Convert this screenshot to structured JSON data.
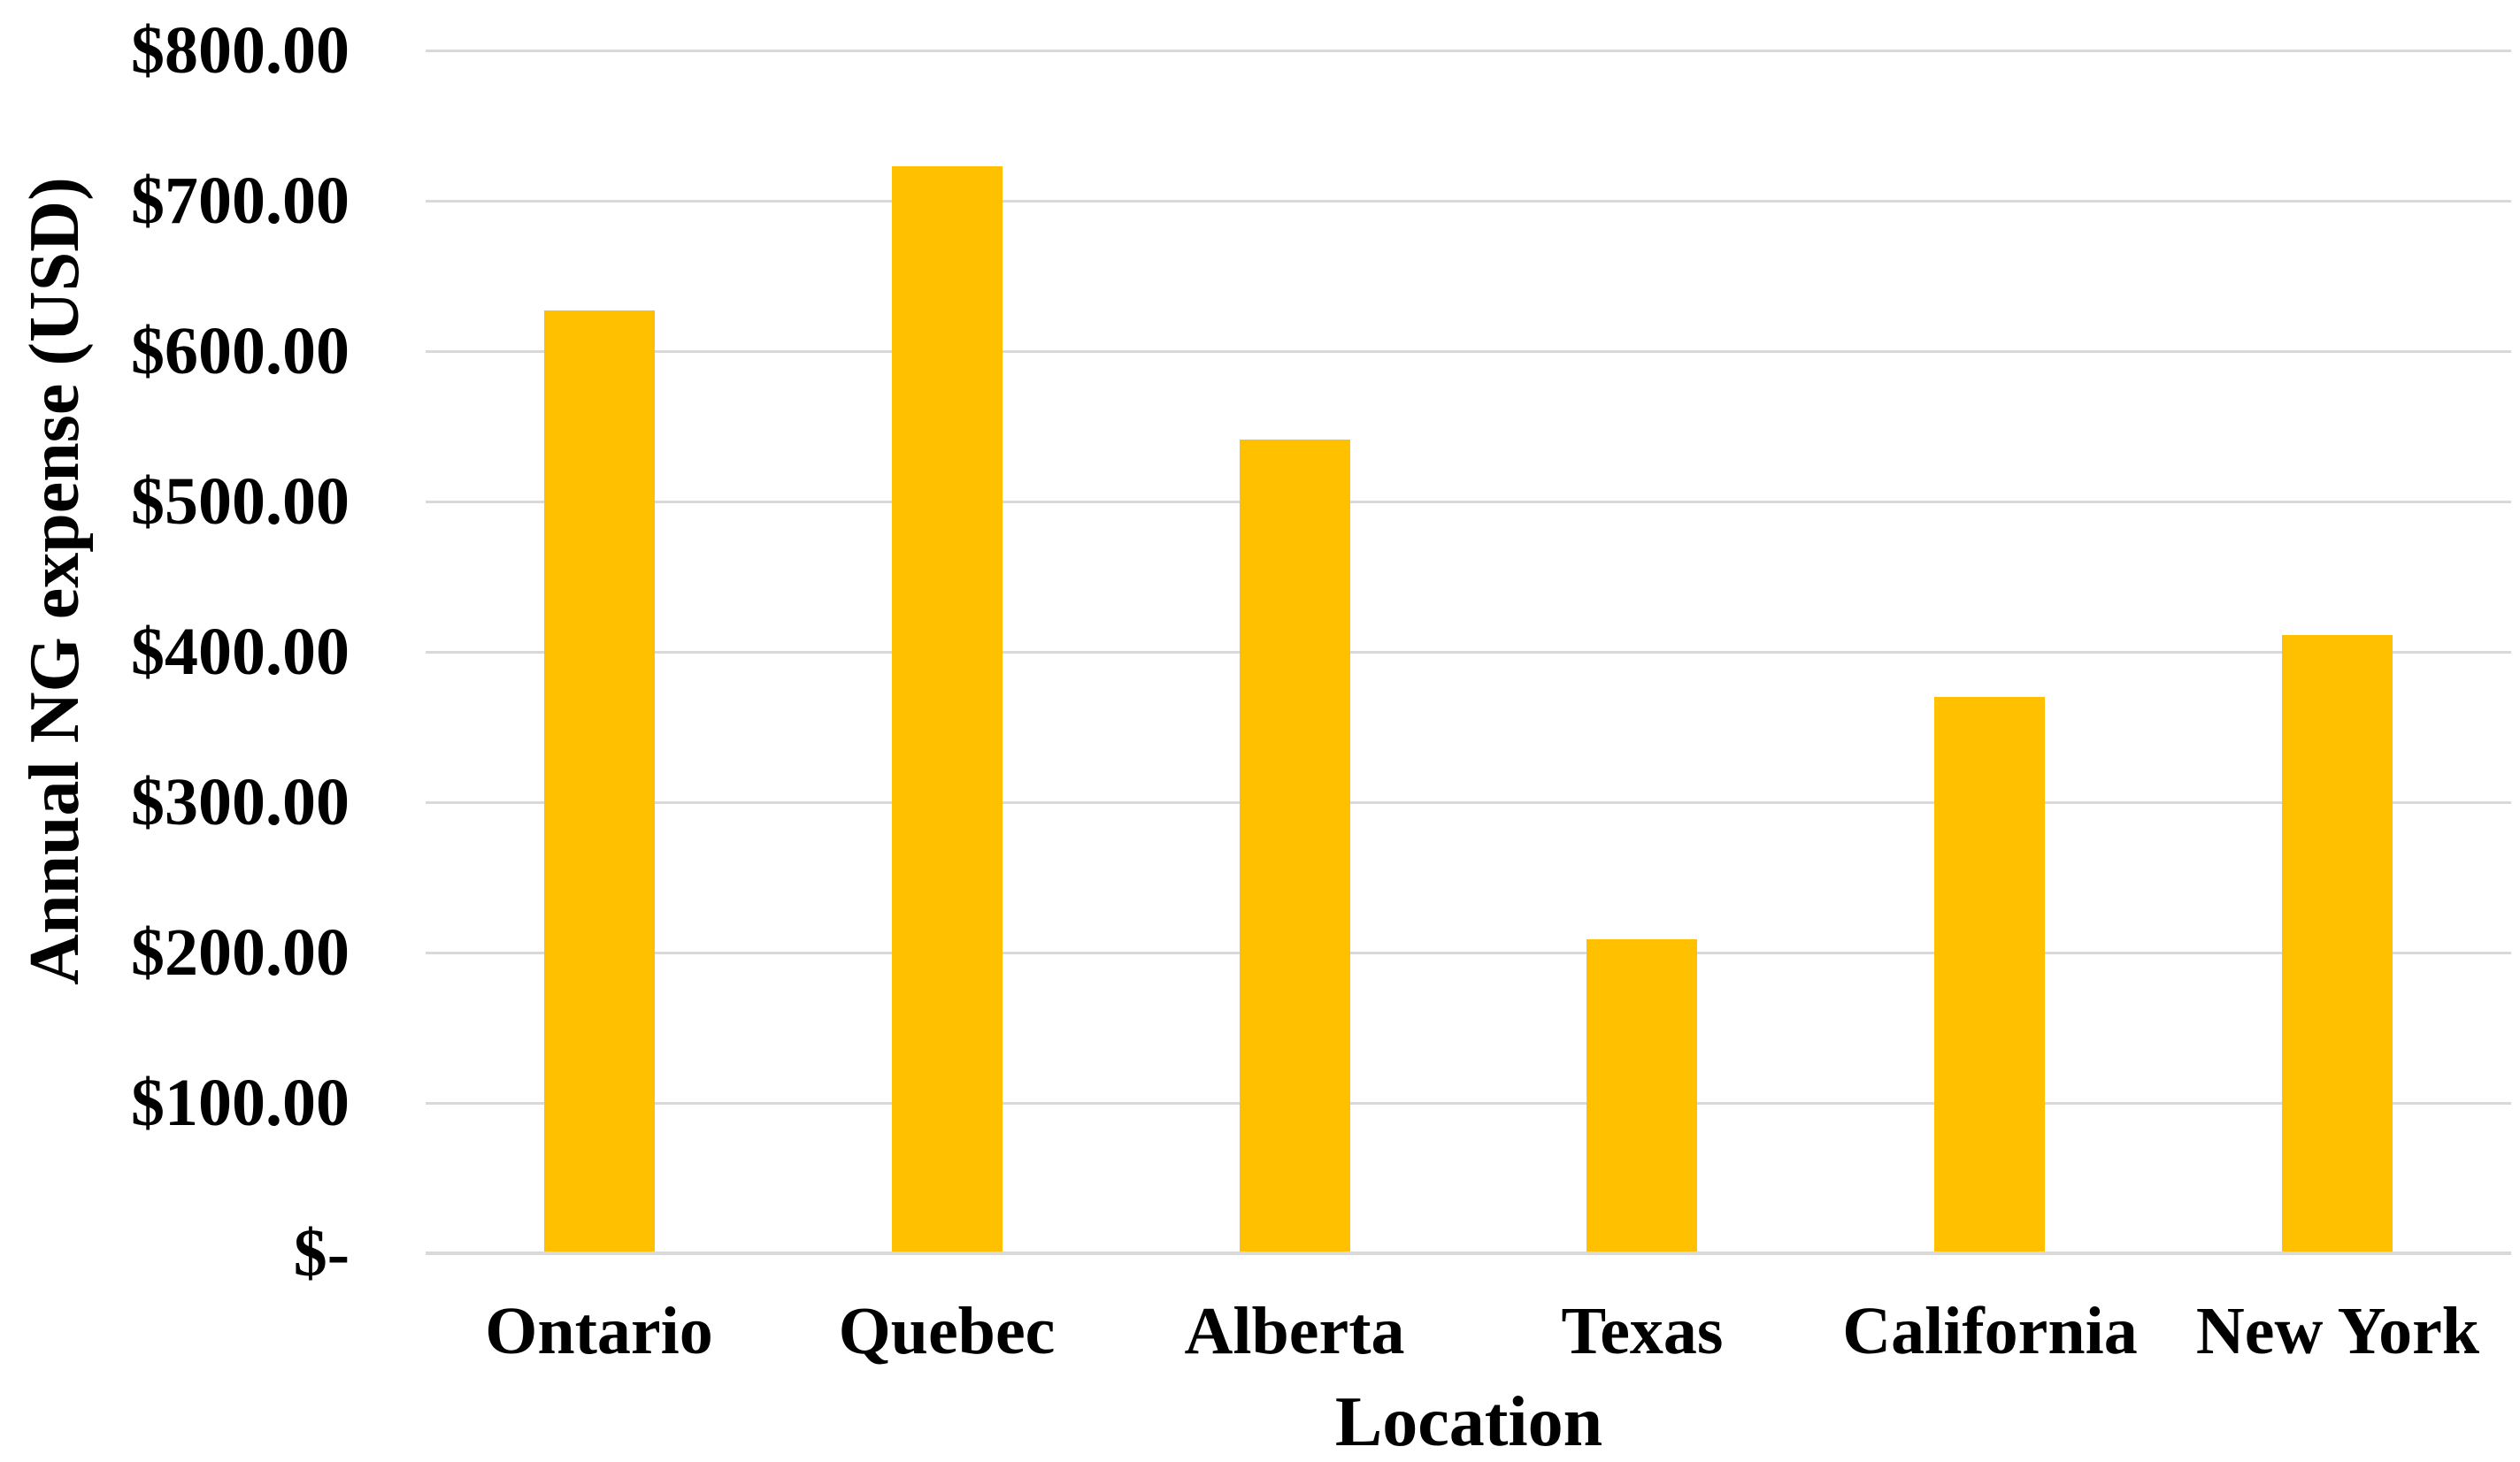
{
  "chart_data": {
    "type": "bar",
    "title": "",
    "xlabel": "Location",
    "ylabel": "Annual NG expense (USD)",
    "categories": [
      "Ontario",
      "Quebec",
      "Alberta",
      "Texas",
      "California",
      "New York"
    ],
    "values": [
      627,
      723,
      541,
      209,
      370,
      411
    ],
    "value_unit": "USD",
    "ylim": [
      0,
      800
    ],
    "ytick_interval": 100,
    "yticks": [
      {
        "value": 0,
        "label": "$-"
      },
      {
        "value": 100,
        "label": "$100.00"
      },
      {
        "value": 200,
        "label": "$200.00"
      },
      {
        "value": 300,
        "label": "$300.00"
      },
      {
        "value": 400,
        "label": "$400.00"
      },
      {
        "value": 500,
        "label": "$500.00"
      },
      {
        "value": 600,
        "label": "$600.00"
      },
      {
        "value": 700,
        "label": "$700.00"
      },
      {
        "value": 800,
        "label": "$800.00"
      }
    ],
    "grid": true,
    "legend": "none",
    "colors": {
      "bar": "#FFC000",
      "gridline": "#D9D9D9",
      "axis_line": "#D9D9D9",
      "text": "#000000",
      "background": "#FFFFFF"
    }
  }
}
